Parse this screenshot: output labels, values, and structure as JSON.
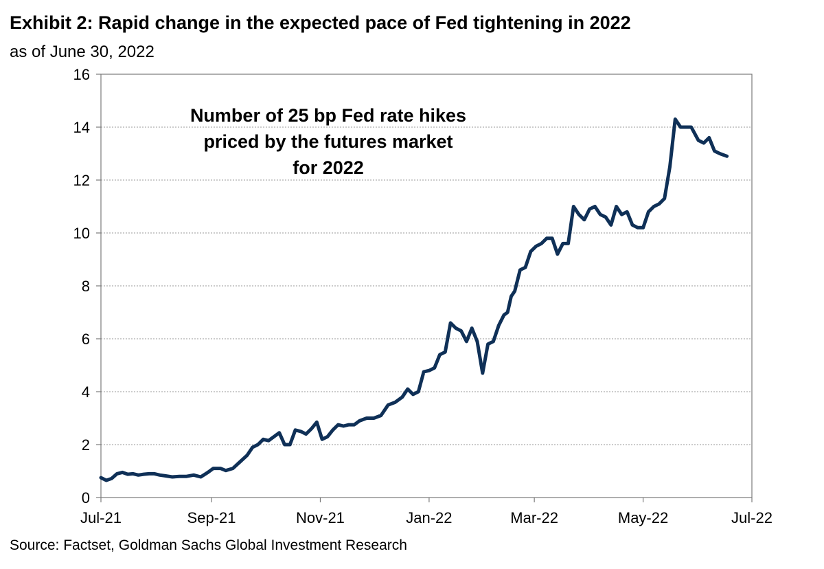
{
  "header": {
    "title": "Exhibit 2: Rapid change in the expected pace of Fed tightening in 2022",
    "subtitle": "as of June 30, 2022"
  },
  "footer": {
    "source": "Source: Factset, Goldman Sachs Global Investment Research"
  },
  "chart_data": {
    "type": "line",
    "title": "Exhibit 2: Rapid change in the expected pace of Fed tightening in 2022",
    "subtitle": "as of June 30, 2022",
    "xlabel": "",
    "ylabel": "",
    "ylim": [
      0,
      16
    ],
    "yticks": [
      0,
      2,
      4,
      6,
      8,
      10,
      12,
      14,
      16
    ],
    "xlim": [
      "2021-07-01",
      "2022-07-01"
    ],
    "xticks": [
      {
        "date": "2021-07-01",
        "label": "Jul-21"
      },
      {
        "date": "2021-09-01",
        "label": "Sep-21"
      },
      {
        "date": "2021-11-01",
        "label": "Nov-21"
      },
      {
        "date": "2022-01-01",
        "label": "Jan-22"
      },
      {
        "date": "2022-03-01",
        "label": "Mar-22"
      },
      {
        "date": "2022-05-01",
        "label": "May-22"
      },
      {
        "date": "2022-07-01",
        "label": "Jul-22"
      }
    ],
    "grid": {
      "horizontal": true,
      "vertical": false
    },
    "line_color": "#0f3057",
    "annotation": [
      "Number of 25 bp Fed rate hikes",
      "priced by the futures market",
      "for 2022"
    ],
    "series": [
      {
        "x": [
          "2021-07-01",
          "2021-07-04",
          "2021-07-07",
          "2021-07-10",
          "2021-07-13",
          "2021-07-16",
          "2021-07-19",
          "2021-07-22",
          "2021-07-25",
          "2021-07-28",
          "2021-07-31",
          "2021-08-03",
          "2021-08-06",
          "2021-08-10",
          "2021-08-14",
          "2021-08-18",
          "2021-08-22",
          "2021-08-26",
          "2021-08-30",
          "2021-09-02",
          "2021-09-06",
          "2021-09-09",
          "2021-09-13",
          "2021-09-17",
          "2021-09-21",
          "2021-09-24",
          "2021-09-27",
          "2021-09-30",
          "2021-10-03",
          "2021-10-06",
          "2021-10-09",
          "2021-10-12",
          "2021-10-15",
          "2021-10-18",
          "2021-10-21",
          "2021-10-24",
          "2021-10-27",
          "2021-10-30",
          "2021-11-02",
          "2021-11-05",
          "2021-11-08",
          "2021-11-11",
          "2021-11-14",
          "2021-11-17",
          "2021-11-20",
          "2021-11-23",
          "2021-11-27",
          "2021-12-01",
          "2021-12-05",
          "2021-12-09",
          "2021-12-13",
          "2021-12-17",
          "2021-12-20",
          "2021-12-23",
          "2021-12-26",
          "2021-12-29",
          "2022-01-01",
          "2022-01-04",
          "2022-01-07",
          "2022-01-10",
          "2022-01-13",
          "2022-01-16",
          "2022-01-19",
          "2022-01-22",
          "2022-01-25",
          "2022-01-28",
          "2022-01-31",
          "2022-02-03",
          "2022-02-06",
          "2022-02-09",
          "2022-02-12",
          "2022-02-14",
          "2022-02-16",
          "2022-02-18",
          "2022-02-21",
          "2022-02-24",
          "2022-02-27",
          "2022-03-02",
          "2022-03-05",
          "2022-03-08",
          "2022-03-11",
          "2022-03-14",
          "2022-03-17",
          "2022-03-20",
          "2022-03-23",
          "2022-03-26",
          "2022-03-29",
          "2022-04-01",
          "2022-04-04",
          "2022-04-07",
          "2022-04-10",
          "2022-04-13",
          "2022-04-16",
          "2022-04-19",
          "2022-04-22",
          "2022-04-25",
          "2022-04-28",
          "2022-05-01",
          "2022-05-04",
          "2022-05-07",
          "2022-05-10",
          "2022-05-13",
          "2022-05-16",
          "2022-05-19",
          "2022-05-22",
          "2022-05-25",
          "2022-05-28",
          "2022-06-01",
          "2022-06-04",
          "2022-06-07",
          "2022-06-10",
          "2022-06-13",
          "2022-06-17"
        ],
        "y": [
          0.75,
          0.65,
          0.72,
          0.9,
          0.95,
          0.88,
          0.9,
          0.85,
          0.88,
          0.9,
          0.9,
          0.85,
          0.82,
          0.78,
          0.8,
          0.8,
          0.85,
          0.78,
          0.95,
          1.1,
          1.1,
          1.02,
          1.1,
          1.35,
          1.6,
          1.9,
          2.0,
          2.2,
          2.15,
          2.3,
          2.45,
          2.0,
          2.0,
          2.55,
          2.5,
          2.4,
          2.6,
          2.85,
          2.2,
          2.3,
          2.55,
          2.75,
          2.7,
          2.75,
          2.75,
          2.9,
          3.0,
          3.0,
          3.1,
          3.5,
          3.6,
          3.8,
          4.1,
          3.9,
          4.0,
          4.75,
          4.8,
          4.9,
          5.4,
          5.5,
          6.6,
          6.4,
          6.3,
          5.9,
          6.4,
          5.9,
          4.7,
          5.8,
          5.9,
          6.5,
          6.9,
          7.0,
          7.6,
          7.8,
          8.6,
          8.7,
          9.3,
          9.5,
          9.6,
          9.8,
          9.8,
          9.2,
          9.6,
          9.6,
          11.0,
          10.7,
          10.5,
          10.9,
          11.0,
          10.7,
          10.6,
          10.3,
          11.0,
          10.7,
          10.8,
          10.3,
          10.2,
          10.2,
          10.8,
          11.0,
          11.1,
          11.3,
          12.5,
          14.3,
          14.0,
          14.0,
          14.0,
          13.5,
          13.4,
          13.6,
          13.1,
          13.0,
          12.9
        ]
      }
    ]
  }
}
